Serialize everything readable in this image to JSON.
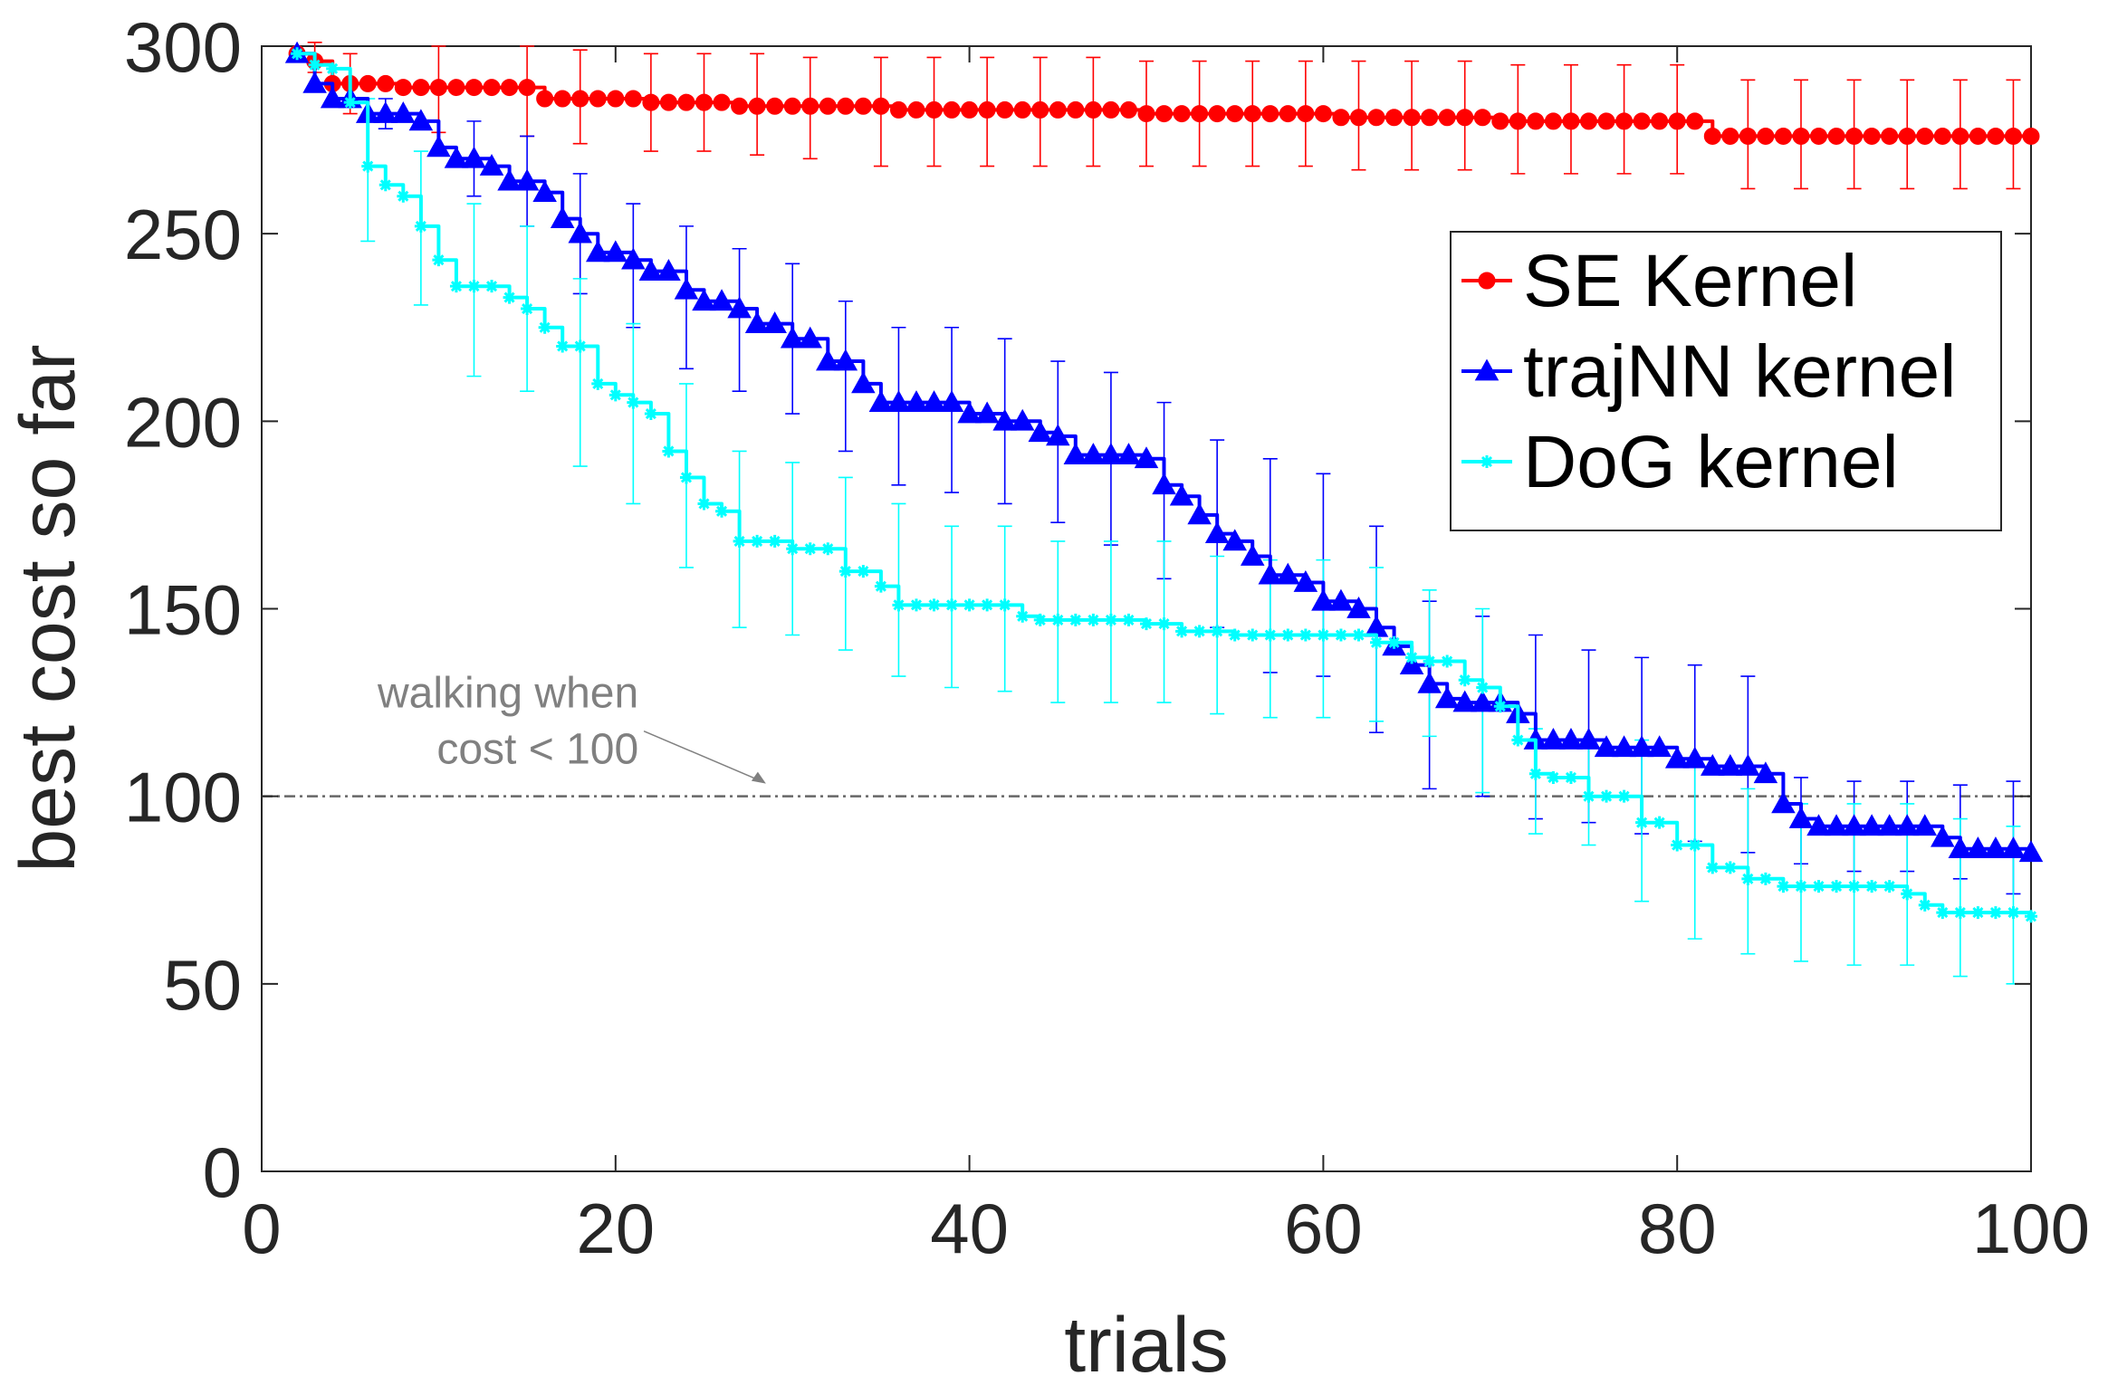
{
  "chart_data": {
    "type": "line",
    "xlabel": "trials",
    "ylabel": "best cost so far",
    "xlim": [
      0,
      100
    ],
    "ylim": [
      0,
      300
    ],
    "xticks": [
      0,
      20,
      40,
      60,
      80,
      100
    ],
    "yticks": [
      0,
      50,
      100,
      150,
      200,
      250,
      300
    ],
    "grid": false,
    "legend_position": "top-right",
    "threshold": {
      "y": 100,
      "color": "#666666",
      "annotation": [
        "walking when",
        "cost < 100"
      ],
      "arrow_target_x": 28.5
    },
    "series": [
      {
        "name": "SE Kernel",
        "color": "#ff0000",
        "marker": "circle",
        "points": [
          [
            2,
            298
          ],
          [
            3,
            296
          ],
          [
            4,
            290
          ],
          [
            6,
            290
          ],
          [
            8,
            289
          ],
          [
            10,
            289
          ],
          [
            12,
            289
          ],
          [
            14,
            289
          ],
          [
            15,
            289
          ],
          [
            16,
            286
          ],
          [
            20,
            286
          ],
          [
            22,
            285
          ],
          [
            25,
            285
          ],
          [
            27,
            284
          ],
          [
            33,
            284
          ],
          [
            36,
            283
          ],
          [
            40,
            283
          ],
          [
            44,
            283
          ],
          [
            50,
            282
          ],
          [
            58,
            282
          ],
          [
            61,
            281
          ],
          [
            66,
            281
          ],
          [
            70,
            280
          ],
          [
            75,
            280
          ],
          [
            80,
            280
          ],
          [
            81,
            280
          ],
          [
            82,
            276
          ],
          [
            90,
            276
          ],
          [
            95,
            276
          ],
          [
            100,
            276
          ]
        ],
        "error_bars": [
          [
            3,
            297,
            293,
            301
          ],
          [
            5,
            290,
            282,
            298
          ],
          [
            10,
            289,
            277,
            300
          ],
          [
            15,
            289,
            276,
            300
          ],
          [
            18,
            286,
            274,
            299
          ],
          [
            22,
            285,
            272,
            298
          ],
          [
            25,
            285,
            272,
            298
          ],
          [
            28,
            284,
            271,
            298
          ],
          [
            31,
            284,
            270,
            297
          ],
          [
            35,
            283,
            268,
            297
          ],
          [
            38,
            283,
            268,
            297
          ],
          [
            41,
            283,
            268,
            297
          ],
          [
            44,
            283,
            268,
            297
          ],
          [
            47,
            283,
            268,
            297
          ],
          [
            50,
            282,
            268,
            296
          ],
          [
            53,
            282,
            268,
            296
          ],
          [
            56,
            282,
            268,
            296
          ],
          [
            59,
            282,
            268,
            296
          ],
          [
            62,
            281,
            267,
            296
          ],
          [
            65,
            281,
            267,
            296
          ],
          [
            68,
            281,
            267,
            296
          ],
          [
            71,
            280,
            266,
            295
          ],
          [
            74,
            280,
            266,
            295
          ],
          [
            77,
            280,
            266,
            295
          ],
          [
            80,
            280,
            266,
            295
          ],
          [
            84,
            276,
            262,
            291
          ],
          [
            87,
            276,
            262,
            291
          ],
          [
            90,
            276,
            262,
            291
          ],
          [
            93,
            276,
            262,
            291
          ],
          [
            96,
            276,
            262,
            291
          ],
          [
            99,
            276,
            262,
            291
          ]
        ]
      },
      {
        "name": "trajNN kernel",
        "color": "#0000ff",
        "marker": "triangle",
        "points": [
          [
            2,
            298
          ],
          [
            3,
            290
          ],
          [
            4,
            286
          ],
          [
            6,
            282
          ],
          [
            9,
            280
          ],
          [
            10,
            273
          ],
          [
            11,
            270
          ],
          [
            13,
            268
          ],
          [
            14,
            264
          ],
          [
            16,
            261
          ],
          [
            17,
            254
          ],
          [
            18,
            250
          ],
          [
            19,
            245
          ],
          [
            21,
            243
          ],
          [
            22,
            240
          ],
          [
            24,
            235
          ],
          [
            25,
            232
          ],
          [
            27,
            230
          ],
          [
            28,
            226
          ],
          [
            30,
            222
          ],
          [
            32,
            216
          ],
          [
            34,
            210
          ],
          [
            35,
            205
          ],
          [
            40,
            202
          ],
          [
            42,
            200
          ],
          [
            44,
            197
          ],
          [
            45,
            196
          ],
          [
            46,
            191
          ],
          [
            50,
            190
          ],
          [
            51,
            183
          ],
          [
            52,
            180
          ],
          [
            53,
            175
          ],
          [
            54,
            170
          ],
          [
            55,
            168
          ],
          [
            56,
            164
          ],
          [
            57,
            159
          ],
          [
            59,
            157
          ],
          [
            60,
            152
          ],
          [
            62,
            150
          ],
          [
            63,
            145
          ],
          [
            64,
            140
          ],
          [
            65,
            135
          ],
          [
            66,
            130
          ],
          [
            67,
            126
          ],
          [
            68,
            125
          ],
          [
            71,
            122
          ],
          [
            72,
            115
          ],
          [
            76,
            113
          ],
          [
            80,
            110
          ],
          [
            82,
            108
          ],
          [
            85,
            106
          ],
          [
            86,
            98
          ],
          [
            87,
            94
          ],
          [
            88,
            92
          ],
          [
            95,
            89
          ],
          [
            96,
            86
          ],
          [
            100,
            85
          ]
        ],
        "error_bars": [
          [
            4,
            287,
            285,
            289
          ],
          [
            7,
            282,
            278,
            286
          ],
          [
            12,
            270,
            260,
            280
          ],
          [
            15,
            264,
            252,
            276
          ],
          [
            18,
            250,
            234,
            266
          ],
          [
            21,
            243,
            225,
            258
          ],
          [
            24,
            233,
            214,
            252
          ],
          [
            27,
            227,
            208,
            246
          ],
          [
            30,
            222,
            202,
            242
          ],
          [
            33,
            212,
            192,
            232
          ],
          [
            36,
            204,
            183,
            225
          ],
          [
            39,
            203,
            181,
            225
          ],
          [
            42,
            199,
            178,
            222
          ],
          [
            45,
            196,
            173,
            216
          ],
          [
            48,
            190,
            167,
            213
          ],
          [
            51,
            183,
            158,
            205
          ],
          [
            54,
            170,
            145,
            195
          ],
          [
            57,
            159,
            133,
            190
          ],
          [
            60,
            152,
            132,
            186
          ],
          [
            63,
            145,
            117,
            172
          ],
          [
            66,
            128,
            102,
            152
          ],
          [
            69,
            123,
            100,
            148
          ],
          [
            72,
            115,
            94,
            143
          ],
          [
            75,
            115,
            93,
            139
          ],
          [
            78,
            112,
            90,
            137
          ],
          [
            81,
            110,
            88,
            135
          ],
          [
            84,
            109,
            85,
            132
          ],
          [
            87,
            95,
            82,
            105
          ],
          [
            90,
            91,
            80,
            104
          ],
          [
            93,
            91,
            80,
            104
          ],
          [
            96,
            86,
            78,
            103
          ],
          [
            99,
            85,
            74,
            104
          ]
        ]
      },
      {
        "name": "DoG kernel",
        "color": "#00ffff",
        "marker": "star",
        "points": [
          [
            2,
            298
          ],
          [
            3,
            295
          ],
          [
            4,
            294
          ],
          [
            5,
            285
          ],
          [
            6,
            268
          ],
          [
            7,
            263
          ],
          [
            8,
            260
          ],
          [
            9,
            252
          ],
          [
            10,
            243
          ],
          [
            11,
            236
          ],
          [
            14,
            233
          ],
          [
            15,
            230
          ],
          [
            16,
            225
          ],
          [
            17,
            220
          ],
          [
            19,
            210
          ],
          [
            20,
            207
          ],
          [
            21,
            205
          ],
          [
            22,
            202
          ],
          [
            23,
            192
          ],
          [
            24,
            185
          ],
          [
            25,
            178
          ],
          [
            26,
            176
          ],
          [
            27,
            168
          ],
          [
            30,
            166
          ],
          [
            33,
            160
          ],
          [
            35,
            156
          ],
          [
            36,
            151
          ],
          [
            43,
            148
          ],
          [
            44,
            147
          ],
          [
            50,
            146
          ],
          [
            52,
            144
          ],
          [
            55,
            143
          ],
          [
            63,
            141
          ],
          [
            65,
            137
          ],
          [
            66,
            136
          ],
          [
            68,
            131
          ],
          [
            69,
            129
          ],
          [
            70,
            124
          ],
          [
            71,
            115
          ],
          [
            72,
            106
          ],
          [
            73,
            105
          ],
          [
            75,
            100
          ],
          [
            78,
            93
          ],
          [
            80,
            87
          ],
          [
            82,
            81
          ],
          [
            84,
            78
          ],
          [
            86,
            76
          ],
          [
            93,
            74
          ],
          [
            94,
            71
          ],
          [
            95,
            69
          ],
          [
            100,
            68
          ]
        ],
        "error_bars": [
          [
            6,
            268,
            248,
            286
          ],
          [
            9,
            251,
            231,
            272
          ],
          [
            12,
            234,
            212,
            258
          ],
          [
            15,
            229,
            208,
            252
          ],
          [
            18,
            215,
            188,
            238
          ],
          [
            21,
            202,
            178,
            226
          ],
          [
            24,
            184,
            161,
            210
          ],
          [
            27,
            168,
            145,
            192
          ],
          [
            30,
            166,
            143,
            189
          ],
          [
            33,
            162,
            139,
            185
          ],
          [
            36,
            155,
            132,
            178
          ],
          [
            39,
            150,
            129,
            172
          ],
          [
            42,
            149,
            128,
            172
          ],
          [
            45,
            147,
            125,
            168
          ],
          [
            48,
            147,
            125,
            168
          ],
          [
            51,
            146,
            125,
            168
          ],
          [
            54,
            143,
            122,
            164
          ],
          [
            57,
            142,
            121,
            163
          ],
          [
            60,
            142,
            121,
            163
          ],
          [
            63,
            141,
            120,
            161
          ],
          [
            66,
            136,
            116,
            155
          ],
          [
            69,
            129,
            101,
            150
          ],
          [
            72,
            105,
            90,
            118
          ],
          [
            75,
            100,
            87,
            113
          ],
          [
            78,
            93,
            72,
            115
          ],
          [
            81,
            85,
            62,
            109
          ],
          [
            84,
            77,
            58,
            102
          ],
          [
            87,
            75,
            56,
            98
          ],
          [
            90,
            75,
            55,
            98
          ],
          [
            93,
            74,
            55,
            98
          ],
          [
            96,
            70,
            52,
            94
          ],
          [
            99,
            68,
            50,
            92
          ]
        ]
      }
    ]
  }
}
